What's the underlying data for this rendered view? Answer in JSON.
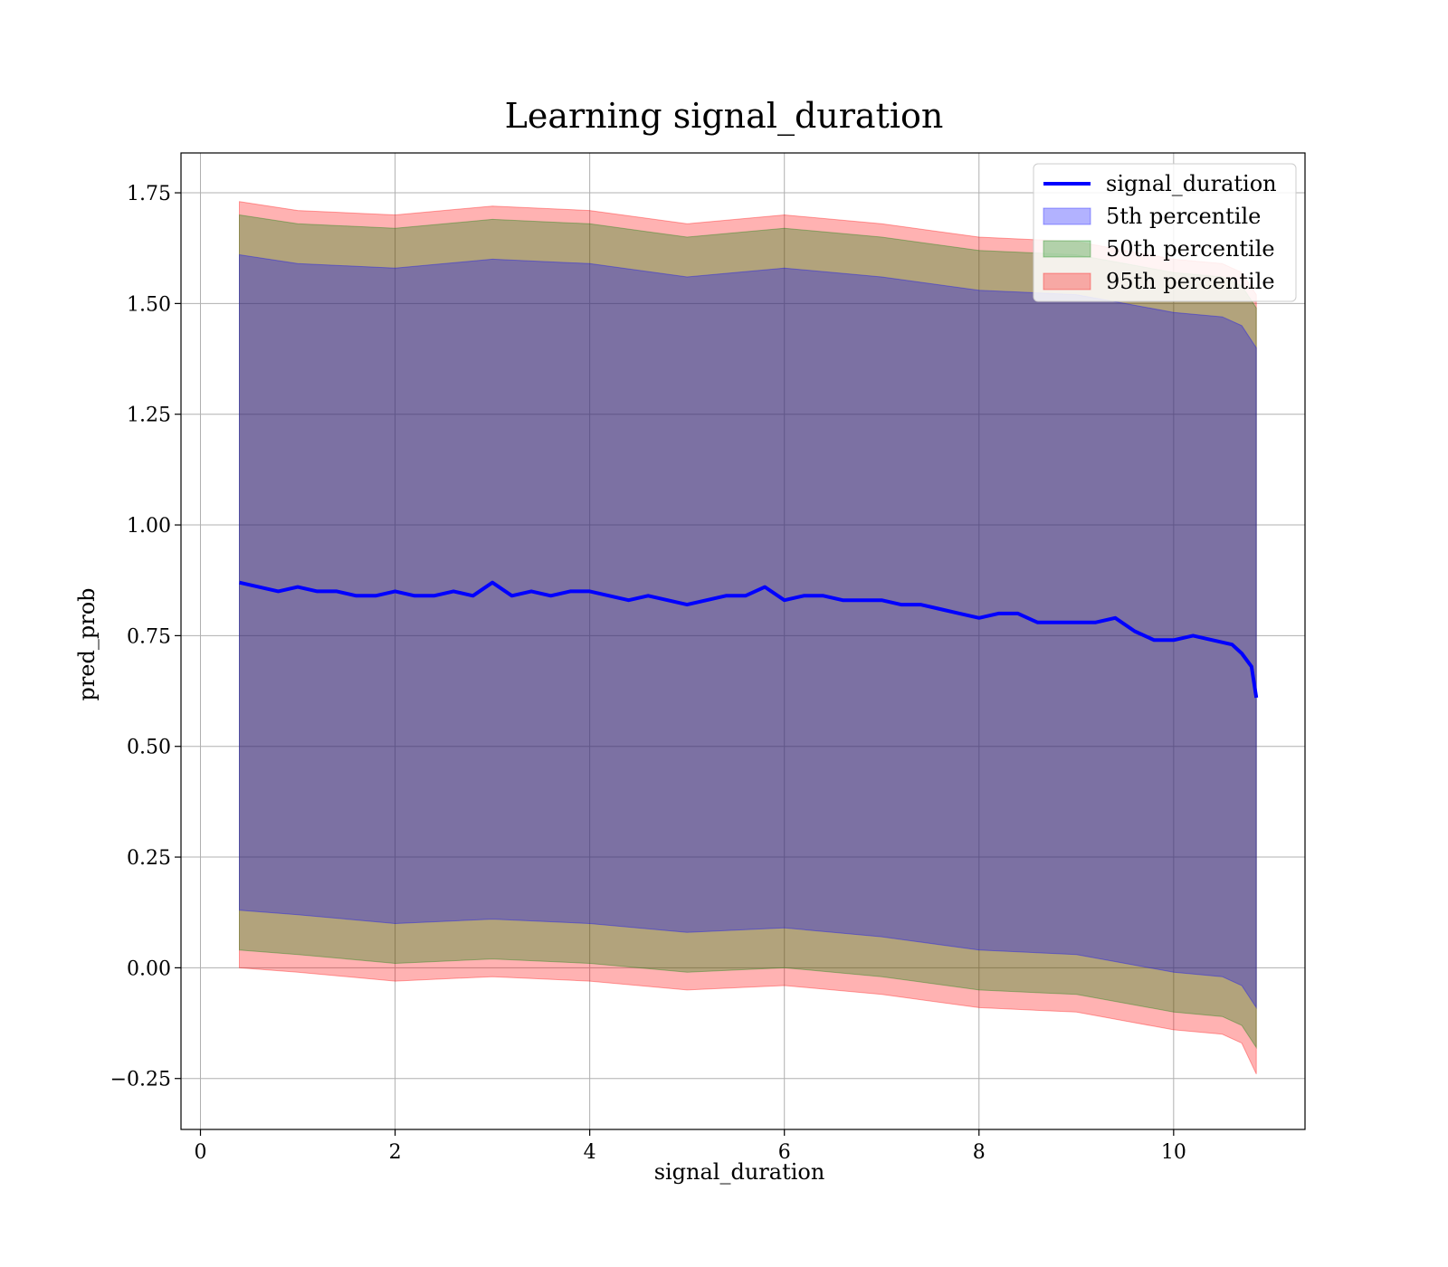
{
  "chart_data": {
    "type": "area",
    "title": "Learning signal_duration",
    "xlabel": "signal_duration",
    "ylabel": "pred_prob",
    "xlim": [
      -0.2,
      11.35
    ],
    "ylim": [
      -0.365,
      1.84
    ],
    "xticks": [
      0,
      2,
      4,
      6,
      8,
      10
    ],
    "xtick_labels": [
      "0",
      "2",
      "4",
      "6",
      "8",
      "10"
    ],
    "yticks": [
      -0.25,
      0,
      0.25,
      0.5,
      0.75,
      1.0,
      1.25,
      1.5,
      1.75
    ],
    "ytick_labels": [
      "−0.25",
      "0.00",
      "0.25",
      "0.50",
      "0.75",
      "1.00",
      "1.25",
      "1.50",
      "1.75"
    ],
    "grid": true,
    "legend_position": "top-right",
    "colors": {
      "line": "#0000ff",
      "band_5th": "#0000ff",
      "band_50th": "#008000",
      "band_95th": "#ff0000"
    },
    "line": {
      "name": "signal_duration",
      "x": [
        0.4,
        0.6,
        0.8,
        1.0,
        1.2,
        1.4,
        1.6,
        1.8,
        2.0,
        2.2,
        2.4,
        2.6,
        2.8,
        3.0,
        3.2,
        3.4,
        3.6,
        3.8,
        4.0,
        4.2,
        4.4,
        4.6,
        4.8,
        5.0,
        5.2,
        5.4,
        5.6,
        5.8,
        6.0,
        6.2,
        6.4,
        6.6,
        6.8,
        7.0,
        7.2,
        7.4,
        7.6,
        7.8,
        8.0,
        8.2,
        8.4,
        8.6,
        8.8,
        9.0,
        9.2,
        9.4,
        9.6,
        9.8,
        10.0,
        10.2,
        10.4,
        10.6,
        10.7,
        10.8,
        10.85
      ],
      "y": [
        0.87,
        0.86,
        0.85,
        0.86,
        0.85,
        0.85,
        0.84,
        0.84,
        0.85,
        0.84,
        0.84,
        0.85,
        0.84,
        0.87,
        0.84,
        0.85,
        0.84,
        0.85,
        0.85,
        0.84,
        0.83,
        0.84,
        0.83,
        0.82,
        0.83,
        0.84,
        0.84,
        0.86,
        0.83,
        0.84,
        0.84,
        0.83,
        0.83,
        0.83,
        0.82,
        0.82,
        0.81,
        0.8,
        0.79,
        0.8,
        0.8,
        0.78,
        0.78,
        0.78,
        0.78,
        0.79,
        0.76,
        0.74,
        0.74,
        0.75,
        0.74,
        0.73,
        0.71,
        0.68,
        0.61
      ]
    },
    "bands": [
      {
        "name": "5th percentile",
        "x": [
          0.4,
          1.0,
          2.0,
          3.0,
          4.0,
          5.0,
          6.0,
          7.0,
          8.0,
          9.0,
          9.5,
          10.0,
          10.5,
          10.7,
          10.85
        ],
        "lower": [
          0.13,
          0.12,
          0.1,
          0.11,
          0.1,
          0.08,
          0.09,
          0.07,
          0.04,
          0.03,
          0.01,
          -0.01,
          -0.02,
          -0.04,
          -0.09
        ],
        "upper": [
          1.61,
          1.59,
          1.58,
          1.6,
          1.59,
          1.56,
          1.58,
          1.56,
          1.53,
          1.52,
          1.5,
          1.48,
          1.47,
          1.45,
          1.4
        ]
      },
      {
        "name": "50th percentile",
        "x": [
          0.4,
          1.0,
          2.0,
          3.0,
          4.0,
          5.0,
          6.0,
          7.0,
          8.0,
          9.0,
          9.5,
          10.0,
          10.5,
          10.7,
          10.85
        ],
        "lower": [
          0.04,
          0.03,
          0.01,
          0.02,
          0.01,
          -0.01,
          0.0,
          -0.02,
          -0.05,
          -0.06,
          -0.08,
          -0.1,
          -0.11,
          -0.13,
          -0.18
        ],
        "upper": [
          1.7,
          1.68,
          1.67,
          1.69,
          1.68,
          1.65,
          1.67,
          1.65,
          1.62,
          1.61,
          1.59,
          1.57,
          1.56,
          1.54,
          1.49
        ]
      },
      {
        "name": "95th percentile",
        "x": [
          0.4,
          1.0,
          2.0,
          3.0,
          4.0,
          5.0,
          6.0,
          7.0,
          8.0,
          9.0,
          9.5,
          10.0,
          10.5,
          10.7,
          10.85
        ],
        "lower": [
          0.0,
          -0.01,
          -0.03,
          -0.02,
          -0.03,
          -0.05,
          -0.04,
          -0.06,
          -0.09,
          -0.1,
          -0.12,
          -0.14,
          -0.15,
          -0.17,
          -0.24
        ],
        "upper": [
          1.73,
          1.71,
          1.7,
          1.72,
          1.71,
          1.68,
          1.7,
          1.68,
          1.65,
          1.64,
          1.62,
          1.6,
          1.59,
          1.57,
          1.52
        ]
      }
    ]
  }
}
